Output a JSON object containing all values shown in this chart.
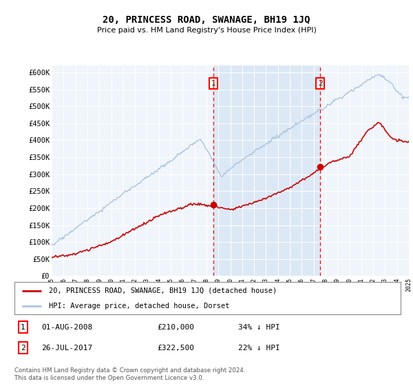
{
  "title": "20, PRINCESS ROAD, SWANAGE, BH19 1JQ",
  "subtitle": "Price paid vs. HM Land Registry's House Price Index (HPI)",
  "ylim": [
    0,
    620000
  ],
  "yticks": [
    0,
    50000,
    100000,
    150000,
    200000,
    250000,
    300000,
    350000,
    400000,
    450000,
    500000,
    550000,
    600000
  ],
  "ytick_labels": [
    "£0",
    "£50K",
    "£100K",
    "£150K",
    "£200K",
    "£250K",
    "£300K",
    "£350K",
    "£400K",
    "£450K",
    "£500K",
    "£550K",
    "£600K"
  ],
  "hpi_color": "#a8c4e0",
  "hpi_fill_color": "#dce8f5",
  "price_color": "#cc0000",
  "sale1_date_num": 2008.58,
  "sale1_price": 210000,
  "sale2_date_num": 2017.56,
  "sale2_price": 322500,
  "legend_line1": "20, PRINCESS ROAD, SWANAGE, BH19 1JQ (detached house)",
  "legend_line2": "HPI: Average price, detached house, Dorset",
  "sale1_text": "01-AUG-2008",
  "sale1_price_str": "£210,000",
  "sale1_pct": "34% ↓ HPI",
  "sale2_text": "26-JUL-2017",
  "sale2_price_str": "£322,500",
  "sale2_pct": "22% ↓ HPI",
  "footer": "Contains HM Land Registry data © Crown copyright and database right 2024.\nThis data is licensed under the Open Government Licence v3.0.",
  "chart_bg": "#f0f5fb",
  "shade_bg": "#dce8f5"
}
